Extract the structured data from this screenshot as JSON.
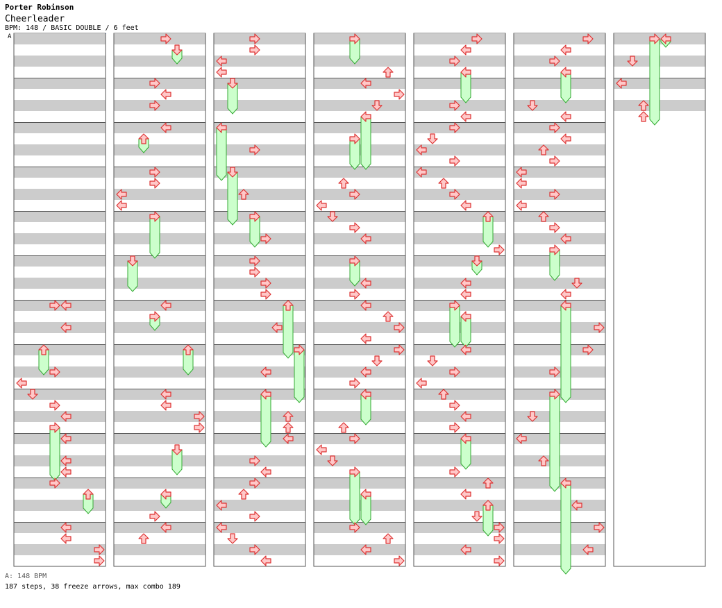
{
  "header": {
    "artist": "Porter Robinson",
    "title": "Cheerleader",
    "info": "BPM: 148 / BASIC DOUBLE / 6 feet",
    "marker": "A"
  },
  "footer": {
    "bpm": "A: 148 BPM",
    "stats": "187 steps, 38 freeze arrows, max combo 189"
  },
  "colors": {
    "arrow": "#ffc8c8",
    "arrow_stroke": "#dd3333",
    "freeze": "#ccffcc",
    "freeze_stroke": "#33aa33",
    "stripe": "#cccccc",
    "border": "#555555"
  },
  "chart_data": {
    "type": "step-chart",
    "columns": 7,
    "measures_per_column": 12,
    "rows_per_measure": 4,
    "lanes": 8,
    "notes": [
      {
        "c": 0,
        "r": 24,
        "l": 3,
        "d": "right"
      },
      {
        "c": 0,
        "r": 24,
        "l": 4,
        "d": "left"
      },
      {
        "c": 0,
        "r": 26,
        "l": 4,
        "d": "left"
      },
      {
        "c": 0,
        "r": 30,
        "l": 3,
        "d": "right"
      },
      {
        "c": 0,
        "r": 31,
        "l": 0,
        "d": "left"
      },
      {
        "c": 0,
        "r": 32,
        "l": 1,
        "d": "down"
      },
      {
        "c": 0,
        "r": 33,
        "l": 3,
        "d": "right"
      },
      {
        "c": 0,
        "r": 34,
        "l": 4,
        "d": "left"
      },
      {
        "c": 0,
        "r": 36,
        "l": 4,
        "d": "left"
      },
      {
        "c": 0,
        "r": 38,
        "l": 4,
        "d": "left"
      },
      {
        "c": 0,
        "r": 39,
        "l": 4,
        "d": "left"
      },
      {
        "c": 0,
        "r": 40,
        "l": 3,
        "d": "right"
      },
      {
        "c": 0,
        "r": 44,
        "l": 4,
        "d": "left"
      },
      {
        "c": 0,
        "r": 45,
        "l": 4,
        "d": "left"
      },
      {
        "c": 0,
        "r": 46,
        "l": 7,
        "d": "right"
      },
      {
        "c": 0,
        "r": 47,
        "l": 7,
        "d": "right"
      },
      {
        "c": 1,
        "r": 0,
        "l": 4,
        "d": "right"
      },
      {
        "c": 1,
        "r": 4,
        "l": 3,
        "d": "right"
      },
      {
        "c": 1,
        "r": 5,
        "l": 4,
        "d": "left"
      },
      {
        "c": 1,
        "r": 6,
        "l": 3,
        "d": "right"
      },
      {
        "c": 1,
        "r": 8,
        "l": 4,
        "d": "left"
      },
      {
        "c": 1,
        "r": 12,
        "l": 3,
        "d": "right"
      },
      {
        "c": 1,
        "r": 13,
        "l": 3,
        "d": "right"
      },
      {
        "c": 1,
        "r": 14,
        "l": 0,
        "d": "left"
      },
      {
        "c": 1,
        "r": 15,
        "l": 0,
        "d": "left"
      },
      {
        "c": 1,
        "r": 24,
        "l": 4,
        "d": "left"
      },
      {
        "c": 1,
        "r": 32,
        "l": 4,
        "d": "left"
      },
      {
        "c": 1,
        "r": 33,
        "l": 4,
        "d": "left"
      },
      {
        "c": 1,
        "r": 34,
        "l": 7,
        "d": "right"
      },
      {
        "c": 1,
        "r": 35,
        "l": 7,
        "d": "right"
      },
      {
        "c": 1,
        "r": 43,
        "l": 3,
        "d": "right"
      },
      {
        "c": 1,
        "r": 44,
        "l": 4,
        "d": "left"
      },
      {
        "c": 1,
        "r": 45,
        "l": 2,
        "d": "up"
      },
      {
        "c": 2,
        "r": 0,
        "l": 3,
        "d": "right"
      },
      {
        "c": 2,
        "r": 1,
        "l": 3,
        "d": "right"
      },
      {
        "c": 2,
        "r": 2,
        "l": 0,
        "d": "left"
      },
      {
        "c": 2,
        "r": 3,
        "l": 0,
        "d": "left"
      },
      {
        "c": 2,
        "r": 10,
        "l": 3,
        "d": "right"
      },
      {
        "c": 2,
        "r": 14,
        "l": 2,
        "d": "up"
      },
      {
        "c": 2,
        "r": 18,
        "l": 4,
        "d": "right"
      },
      {
        "c": 2,
        "r": 20,
        "l": 3,
        "d": "right"
      },
      {
        "c": 2,
        "r": 21,
        "l": 3,
        "d": "right"
      },
      {
        "c": 2,
        "r": 22,
        "l": 4,
        "d": "right"
      },
      {
        "c": 2,
        "r": 23,
        "l": 4,
        "d": "right"
      },
      {
        "c": 2,
        "r": 26,
        "l": 5,
        "d": "left"
      },
      {
        "c": 2,
        "r": 30,
        "l": 4,
        "d": "left"
      },
      {
        "c": 2,
        "r": 34,
        "l": 6,
        "d": "up"
      },
      {
        "c": 2,
        "r": 35,
        "l": 6,
        "d": "up"
      },
      {
        "c": 2,
        "r": 36,
        "l": 6,
        "d": "left"
      },
      {
        "c": 2,
        "r": 38,
        "l": 3,
        "d": "right"
      },
      {
        "c": 2,
        "r": 39,
        "l": 4,
        "d": "left"
      },
      {
        "c": 2,
        "r": 40,
        "l": 3,
        "d": "right"
      },
      {
        "c": 2,
        "r": 41,
        "l": 2,
        "d": "up"
      },
      {
        "c": 2,
        "r": 42,
        "l": 0,
        "d": "left"
      },
      {
        "c": 2,
        "r": 43,
        "l": 3,
        "d": "right"
      },
      {
        "c": 2,
        "r": 44,
        "l": 0,
        "d": "left"
      },
      {
        "c": 2,
        "r": 45,
        "l": 1,
        "d": "down"
      },
      {
        "c": 2,
        "r": 46,
        "l": 3,
        "d": "right"
      },
      {
        "c": 2,
        "r": 47,
        "l": 4,
        "d": "left"
      },
      {
        "c": 3,
        "r": 3,
        "l": 6,
        "d": "up"
      },
      {
        "c": 3,
        "r": 4,
        "l": 4,
        "d": "left"
      },
      {
        "c": 3,
        "r": 5,
        "l": 7,
        "d": "right"
      },
      {
        "c": 3,
        "r": 6,
        "l": 5,
        "d": "down"
      },
      {
        "c": 3,
        "r": 13,
        "l": 2,
        "d": "up"
      },
      {
        "c": 3,
        "r": 14,
        "l": 3,
        "d": "right"
      },
      {
        "c": 3,
        "r": 15,
        "l": 0,
        "d": "left"
      },
      {
        "c": 3,
        "r": 16,
        "l": 1,
        "d": "down"
      },
      {
        "c": 3,
        "r": 17,
        "l": 3,
        "d": "right"
      },
      {
        "c": 3,
        "r": 18,
        "l": 4,
        "d": "left"
      },
      {
        "c": 3,
        "r": 22,
        "l": 4,
        "d": "left"
      },
      {
        "c": 3,
        "r": 23,
        "l": 3,
        "d": "right"
      },
      {
        "c": 3,
        "r": 24,
        "l": 4,
        "d": "left"
      },
      {
        "c": 3,
        "r": 25,
        "l": 6,
        "d": "up"
      },
      {
        "c": 3,
        "r": 26,
        "l": 7,
        "d": "right"
      },
      {
        "c": 3,
        "r": 27,
        "l": 4,
        "d": "left"
      },
      {
        "c": 3,
        "r": 28,
        "l": 7,
        "d": "right"
      },
      {
        "c": 3,
        "r": 29,
        "l": 5,
        "d": "down"
      },
      {
        "c": 3,
        "r": 30,
        "l": 4,
        "d": "left"
      },
      {
        "c": 3,
        "r": 31,
        "l": 3,
        "d": "right"
      },
      {
        "c": 3,
        "r": 35,
        "l": 2,
        "d": "up"
      },
      {
        "c": 3,
        "r": 36,
        "l": 3,
        "d": "right"
      },
      {
        "c": 3,
        "r": 37,
        "l": 0,
        "d": "left"
      },
      {
        "c": 3,
        "r": 38,
        "l": 1,
        "d": "down"
      },
      {
        "c": 3,
        "r": 44,
        "l": 3,
        "d": "right"
      },
      {
        "c": 3,
        "r": 45,
        "l": 6,
        "d": "up"
      },
      {
        "c": 3,
        "r": 46,
        "l": 4,
        "d": "left"
      },
      {
        "c": 3,
        "r": 47,
        "l": 7,
        "d": "right"
      },
      {
        "c": 4,
        "r": 0,
        "l": 5,
        "d": "right"
      },
      {
        "c": 4,
        "r": 1,
        "l": 4,
        "d": "left"
      },
      {
        "c": 4,
        "r": 2,
        "l": 3,
        "d": "right"
      },
      {
        "c": 4,
        "r": 6,
        "l": 3,
        "d": "right"
      },
      {
        "c": 4,
        "r": 7,
        "l": 4,
        "d": "left"
      },
      {
        "c": 4,
        "r": 8,
        "l": 3,
        "d": "right"
      },
      {
        "c": 4,
        "r": 9,
        "l": 1,
        "d": "down"
      },
      {
        "c": 4,
        "r": 10,
        "l": 0,
        "d": "left"
      },
      {
        "c": 4,
        "r": 11,
        "l": 3,
        "d": "right"
      },
      {
        "c": 4,
        "r": 12,
        "l": 0,
        "d": "left"
      },
      {
        "c": 4,
        "r": 13,
        "l": 2,
        "d": "up"
      },
      {
        "c": 4,
        "r": 14,
        "l": 3,
        "d": "right"
      },
      {
        "c": 4,
        "r": 15,
        "l": 4,
        "d": "left"
      },
      {
        "c": 4,
        "r": 19,
        "l": 7,
        "d": "right"
      },
      {
        "c": 4,
        "r": 22,
        "l": 4,
        "d": "left"
      },
      {
        "c": 4,
        "r": 23,
        "l": 4,
        "d": "left"
      },
      {
        "c": 4,
        "r": 28,
        "l": 4,
        "d": "left"
      },
      {
        "c": 4,
        "r": 29,
        "l": 1,
        "d": "down"
      },
      {
        "c": 4,
        "r": 30,
        "l": 3,
        "d": "right"
      },
      {
        "c": 4,
        "r": 31,
        "l": 0,
        "d": "left"
      },
      {
        "c": 4,
        "r": 32,
        "l": 2,
        "d": "up"
      },
      {
        "c": 4,
        "r": 33,
        "l": 3,
        "d": "right"
      },
      {
        "c": 4,
        "r": 34,
        "l": 4,
        "d": "left"
      },
      {
        "c": 4,
        "r": 35,
        "l": 3,
        "d": "right"
      },
      {
        "c": 4,
        "r": 39,
        "l": 3,
        "d": "right"
      },
      {
        "c": 4,
        "r": 40,
        "l": 6,
        "d": "up"
      },
      {
        "c": 4,
        "r": 41,
        "l": 4,
        "d": "left"
      },
      {
        "c": 4,
        "r": 43,
        "l": 5,
        "d": "down"
      },
      {
        "c": 4,
        "r": 44,
        "l": 7,
        "d": "right"
      },
      {
        "c": 4,
        "r": 45,
        "l": 7,
        "d": "right"
      },
      {
        "c": 4,
        "r": 46,
        "l": 4,
        "d": "left"
      },
      {
        "c": 4,
        "r": 47,
        "l": 7,
        "d": "right"
      },
      {
        "c": 5,
        "r": 0,
        "l": 6,
        "d": "right"
      },
      {
        "c": 5,
        "r": 1,
        "l": 4,
        "d": "left"
      },
      {
        "c": 5,
        "r": 2,
        "l": 3,
        "d": "right"
      },
      {
        "c": 5,
        "r": 6,
        "l": 1,
        "d": "down"
      },
      {
        "c": 5,
        "r": 7,
        "l": 4,
        "d": "left"
      },
      {
        "c": 5,
        "r": 8,
        "l": 3,
        "d": "right"
      },
      {
        "c": 5,
        "r": 9,
        "l": 4,
        "d": "left"
      },
      {
        "c": 5,
        "r": 10,
        "l": 2,
        "d": "up"
      },
      {
        "c": 5,
        "r": 11,
        "l": 3,
        "d": "right"
      },
      {
        "c": 5,
        "r": 12,
        "l": 0,
        "d": "left"
      },
      {
        "c": 5,
        "r": 13,
        "l": 0,
        "d": "left"
      },
      {
        "c": 5,
        "r": 14,
        "l": 3,
        "d": "right"
      },
      {
        "c": 5,
        "r": 15,
        "l": 0,
        "d": "left"
      },
      {
        "c": 5,
        "r": 16,
        "l": 2,
        "d": "up"
      },
      {
        "c": 5,
        "r": 17,
        "l": 3,
        "d": "right"
      },
      {
        "c": 5,
        "r": 18,
        "l": 4,
        "d": "left"
      },
      {
        "c": 5,
        "r": 22,
        "l": 5,
        "d": "down"
      },
      {
        "c": 5,
        "r": 23,
        "l": 4,
        "d": "left"
      },
      {
        "c": 5,
        "r": 26,
        "l": 7,
        "d": "right"
      },
      {
        "c": 5,
        "r": 28,
        "l": 6,
        "d": "right"
      },
      {
        "c": 5,
        "r": 30,
        "l": 3,
        "d": "right"
      },
      {
        "c": 5,
        "r": 34,
        "l": 1,
        "d": "down"
      },
      {
        "c": 5,
        "r": 36,
        "l": 0,
        "d": "left"
      },
      {
        "c": 5,
        "r": 38,
        "l": 2,
        "d": "up"
      },
      {
        "c": 5,
        "r": 42,
        "l": 5,
        "d": "left"
      },
      {
        "c": 5,
        "r": 44,
        "l": 7,
        "d": "right"
      },
      {
        "c": 5,
        "r": 46,
        "l": 6,
        "d": "left"
      },
      {
        "c": 6,
        "r": 2,
        "l": 1,
        "d": "down"
      },
      {
        "c": 6,
        "r": 4,
        "l": 0,
        "d": "left"
      },
      {
        "c": 6,
        "r": 6,
        "l": 2,
        "d": "up"
      },
      {
        "c": 6,
        "r": 7,
        "l": 2,
        "d": "up"
      }
    ],
    "freezes": [
      {
        "c": 0,
        "r": 28,
        "e": 30,
        "l": 2,
        "d": "up"
      },
      {
        "c": 0,
        "r": 35,
        "e": 39.5,
        "l": 3,
        "d": "right"
      },
      {
        "c": 0,
        "r": 41,
        "e": 42.5,
        "l": 6,
        "d": "up"
      },
      {
        "c": 1,
        "r": 1,
        "e": 2,
        "l": 5,
        "d": "down"
      },
      {
        "c": 1,
        "r": 9,
        "e": 10,
        "l": 2,
        "d": "up"
      },
      {
        "c": 1,
        "r": 16,
        "e": 19.5,
        "l": 3,
        "d": "right"
      },
      {
        "c": 1,
        "r": 20,
        "e": 22.5,
        "l": 1,
        "d": "down"
      },
      {
        "c": 1,
        "r": 25,
        "e": 26,
        "l": 3,
        "d": "right"
      },
      {
        "c": 1,
        "r": 28,
        "e": 30,
        "l": 6,
        "d": "up"
      },
      {
        "c": 1,
        "r": 37,
        "e": 39,
        "l": 5,
        "d": "down"
      },
      {
        "c": 1,
        "r": 41,
        "e": 42,
        "l": 4,
        "d": "left"
      },
      {
        "c": 2,
        "r": 4,
        "e": 6.5,
        "l": 1,
        "d": "down"
      },
      {
        "c": 2,
        "r": 8,
        "e": 12.5,
        "l": 0,
        "d": "left"
      },
      {
        "c": 2,
        "r": 12,
        "e": 16.5,
        "l": 1,
        "d": "down"
      },
      {
        "c": 2,
        "r": 16,
        "e": 18.5,
        "l": 3,
        "d": "right"
      },
      {
        "c": 2,
        "r": 24,
        "e": 28.5,
        "l": 6,
        "d": "up"
      },
      {
        "c": 2,
        "r": 28,
        "e": 32.5,
        "l": 7,
        "d": "right"
      },
      {
        "c": 2,
        "r": 32,
        "e": 36.5,
        "l": 4,
        "d": "left"
      },
      {
        "c": 3,
        "r": 0,
        "e": 2,
        "l": 3,
        "d": "right"
      },
      {
        "c": 3,
        "r": 7,
        "e": 11.5,
        "l": 4,
        "d": "left"
      },
      {
        "c": 3,
        "r": 9,
        "e": 11.5,
        "l": 3,
        "d": "right"
      },
      {
        "c": 3,
        "r": 20,
        "e": 22,
        "l": 3,
        "d": "right"
      },
      {
        "c": 3,
        "r": 32,
        "e": 34.5,
        "l": 4,
        "d": "left"
      },
      {
        "c": 3,
        "r": 39,
        "e": 43.5,
        "l": 3,
        "d": "right"
      },
      {
        "c": 3,
        "r": 41,
        "e": 43.5,
        "l": 4,
        "d": "left"
      },
      {
        "c": 4,
        "r": 3,
        "e": 5.5,
        "l": 4,
        "d": "left"
      },
      {
        "c": 4,
        "r": 16,
        "e": 18.5,
        "l": 6,
        "d": "up"
      },
      {
        "c": 4,
        "r": 20,
        "e": 21,
        "l": 5,
        "d": "down"
      },
      {
        "c": 4,
        "r": 24,
        "e": 27.5,
        "l": 3,
        "d": "right"
      },
      {
        "c": 4,
        "r": 25,
        "e": 27.5,
        "l": 4,
        "d": "left"
      },
      {
        "c": 4,
        "r": 36,
        "e": 38.5,
        "l": 4,
        "d": "left"
      },
      {
        "c": 4,
        "r": 42,
        "e": 44.5,
        "l": 6,
        "d": "up"
      },
      {
        "c": 5,
        "r": 3,
        "e": 5.5,
        "l": 4,
        "d": "left"
      },
      {
        "c": 5,
        "r": 19,
        "e": 21.5,
        "l": 3,
        "d": "right"
      },
      {
        "c": 5,
        "r": 24,
        "e": 32.5,
        "l": 4,
        "d": "left"
      },
      {
        "c": 5,
        "r": 32,
        "e": 40.5,
        "l": 3,
        "d": "right"
      },
      {
        "c": 5,
        "r": 40,
        "e": 48.5,
        "l": 4,
        "d": "left"
      },
      {
        "c": 6,
        "r": 0,
        "e": 7.5,
        "l": 3,
        "d": "right"
      },
      {
        "c": 6,
        "r": 0,
        "e": 0.5,
        "l": 4,
        "d": "left"
      }
    ]
  }
}
